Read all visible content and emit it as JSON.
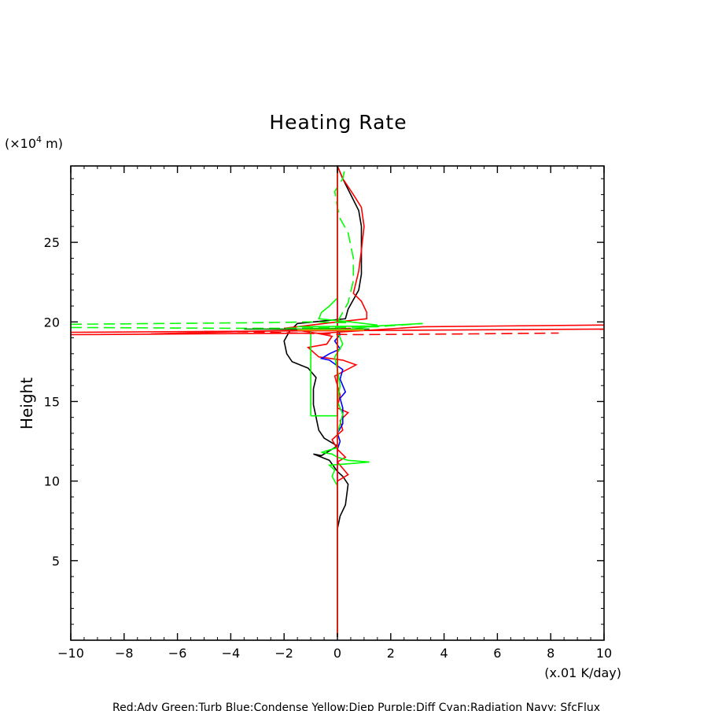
{
  "chart_data": {
    "type": "line",
    "title": "Heating Rate",
    "ylabel": "Height",
    "y_unit_base": "(×10",
    "y_unit_exp": "4",
    "y_unit_suffix": " m)",
    "x_unit": "(x.01 K/day)",
    "legend_text": "Red:Adv  Green:Turb  Blue:Condense  Yellow:Diep  Purple:Diff  Cyan:Radiation  Navy: SfcFlux",
    "xlim": [
      -10,
      10
    ],
    "ylim": [
      0,
      29.8
    ],
    "x_ticks": [
      "−10",
      "−8",
      "−6",
      "−4",
      "−2",
      "0",
      "2",
      "4",
      "6",
      "8",
      "10"
    ],
    "y_ticks": [
      "5",
      "10",
      "15",
      "20",
      "25"
    ],
    "grid": false,
    "series": [
      {
        "color": "#000000",
        "dash": false,
        "points": [
          [
            0,
            0.2
          ],
          [
            0,
            7
          ],
          [
            0.1,
            7.8
          ],
          [
            0.3,
            8.5
          ],
          [
            0.4,
            9.8
          ],
          [
            0.2,
            10.3
          ],
          [
            0,
            10.6
          ],
          [
            -0.3,
            11.3
          ],
          [
            -0.9,
            11.7
          ],
          [
            -0.6,
            11.6
          ],
          [
            0,
            12.2
          ],
          [
            -0.5,
            12.7
          ],
          [
            -0.7,
            13.2
          ],
          [
            -0.8,
            14
          ],
          [
            -0.9,
            14.8
          ],
          [
            -0.9,
            15.8
          ],
          [
            -0.8,
            16.5
          ],
          [
            -1.1,
            17.1
          ],
          [
            -1.7,
            17.5
          ],
          [
            -1.9,
            18
          ],
          [
            -2.0,
            18.8
          ],
          [
            -1.8,
            19.4
          ],
          [
            -1.5,
            19.9
          ],
          [
            0.3,
            20.2
          ],
          [
            0.4,
            20.8
          ],
          [
            0.8,
            22
          ],
          [
            0.9,
            23
          ],
          [
            0.9,
            24.6
          ],
          [
            0.9,
            26
          ],
          [
            0.8,
            27
          ],
          [
            0.5,
            28
          ],
          [
            0.2,
            29
          ],
          [
            0,
            29.8
          ]
        ]
      },
      {
        "color": "#ff0000",
        "dash": false,
        "points": [
          [
            0,
            5.2
          ],
          [
            0,
            10
          ],
          [
            0.4,
            10.4
          ],
          [
            0.2,
            10.8
          ],
          [
            0,
            11.2
          ],
          [
            0.3,
            11.5
          ],
          [
            0,
            12
          ],
          [
            -0.2,
            12.6
          ],
          [
            0.2,
            13.2
          ],
          [
            0.1,
            13.8
          ],
          [
            0.4,
            14.3
          ],
          [
            0,
            14.6
          ],
          [
            0.1,
            15.4
          ],
          [
            0,
            16
          ],
          [
            -0.1,
            16.6
          ],
          [
            0.7,
            17.3
          ],
          [
            0.2,
            17.6
          ],
          [
            -0.7,
            17.8
          ],
          [
            -1.1,
            18.4
          ],
          [
            -0.4,
            18.6
          ],
          [
            -0.2,
            19.1
          ],
          [
            -0.8,
            19.3
          ],
          [
            -2.0,
            19.6
          ],
          [
            0,
            20
          ],
          [
            1.1,
            20.2
          ],
          [
            1.1,
            20.6
          ],
          [
            0.9,
            21.3
          ],
          [
            0.6,
            21.8
          ],
          [
            0.8,
            23.2
          ],
          [
            0.9,
            24.5
          ],
          [
            1.0,
            26
          ],
          [
            0.9,
            27.2
          ],
          [
            0.6,
            28
          ],
          [
            0.2,
            29
          ],
          [
            0,
            29.8
          ]
        ]
      },
      {
        "color": "#0000ff",
        "dash": false,
        "points": [
          [
            0,
            0.2
          ],
          [
            0,
            12
          ],
          [
            0.1,
            12.5
          ],
          [
            0,
            13
          ],
          [
            0.2,
            13.6
          ],
          [
            0.2,
            14.6
          ],
          [
            0.1,
            15.2
          ],
          [
            0.3,
            15.6
          ],
          [
            0.1,
            16.4
          ],
          [
            0.2,
            17
          ],
          [
            -0.3,
            17.6
          ],
          [
            -0.6,
            17.7
          ],
          [
            -0.3,
            18
          ],
          [
            0.1,
            18.3
          ],
          [
            -0.1,
            18.8
          ],
          [
            0.1,
            19.2
          ],
          [
            0,
            19.6
          ],
          [
            0,
            29.8
          ]
        ]
      },
      {
        "color": "#00ff00",
        "dash": false,
        "points": [
          [
            0,
            0.2
          ],
          [
            0,
            9.7
          ],
          [
            -0.2,
            10.3
          ],
          [
            -0.1,
            10.7
          ],
          [
            -0.3,
            11
          ],
          [
            0.5,
            11.1
          ],
          [
            1.2,
            11.2
          ],
          [
            0.4,
            11.3
          ],
          [
            0,
            11.5
          ],
          [
            -0.2,
            11.7
          ],
          [
            -0.6,
            11.8
          ],
          [
            0,
            12.1
          ],
          [
            0,
            13
          ],
          [
            0.2,
            14.2
          ],
          [
            0,
            15
          ],
          [
            0.1,
            16
          ],
          [
            0,
            17
          ],
          [
            -0.1,
            17.8
          ],
          [
            0.2,
            18.6
          ],
          [
            0,
            19.4
          ],
          [
            0.8,
            19.6
          ],
          [
            1.5,
            19.8
          ],
          [
            0.5,
            20
          ],
          [
            -0.7,
            20.2
          ],
          [
            -0.6,
            20.6
          ],
          [
            -0.3,
            21
          ],
          [
            0,
            21.5
          ],
          [
            0,
            29.8
          ]
        ]
      },
      {
        "color": "#00ff00",
        "dash": false,
        "points": [
          [
            -1.0,
            14.1
          ],
          [
            -1.0,
            19.6
          ],
          [
            0,
            19.6
          ],
          [
            0,
            14.1
          ],
          [
            -1.0,
            14.1
          ]
        ]
      },
      {
        "color": "#00ff00",
        "dash": true,
        "points": [
          [
            0,
            20
          ],
          [
            0.4,
            21.2
          ],
          [
            0.6,
            22.6
          ],
          [
            0.6,
            24
          ],
          [
            0.4,
            25.6
          ],
          [
            0.1,
            26.5
          ],
          [
            0,
            27.2
          ],
          [
            -0.1,
            28.2
          ],
          [
            0.2,
            29
          ],
          [
            0.3,
            29.8
          ]
        ]
      },
      {
        "color": "#ff0000",
        "dash": false,
        "points": [
          [
            0,
            0.2
          ],
          [
            0,
            29.8
          ]
        ]
      },
      {
        "color": "#ff0000",
        "dash": false,
        "points": [
          [
            -10,
            19.35
          ],
          [
            10,
            19.55
          ]
        ]
      },
      {
        "color": "#ff0000",
        "dash": false,
        "points": [
          [
            -10,
            19.2
          ],
          [
            -0.5,
            19.3
          ],
          [
            3.2,
            19.7
          ],
          [
            10,
            19.8
          ]
        ]
      },
      {
        "color": "#ff0000",
        "dash": false,
        "points": [
          [
            -7,
            19.25
          ],
          [
            -1,
            19.5
          ],
          [
            0.5,
            19.6
          ]
        ]
      },
      {
        "color": "#ff0000",
        "dash": true,
        "points": [
          [
            -5,
            19.4
          ],
          [
            -2.5,
            19.35
          ],
          [
            0.5,
            19.2
          ],
          [
            5,
            19.25
          ],
          [
            8.3,
            19.3
          ]
        ]
      },
      {
        "color": "#00ff00",
        "dash": true,
        "points": [
          [
            -10,
            19.85
          ],
          [
            -3,
            19.95
          ],
          [
            -1,
            20.0
          ],
          [
            0.5,
            19.95
          ]
        ]
      },
      {
        "color": "#00ff00",
        "dash": true,
        "points": [
          [
            -10,
            19.65
          ],
          [
            -4,
            19.6
          ],
          [
            -2,
            19.6
          ],
          [
            0,
            19.65
          ],
          [
            1.5,
            19.7
          ],
          [
            3.2,
            19.9
          ]
        ]
      },
      {
        "color": "#008800",
        "dash": false,
        "points": [
          [
            -3.5,
            19.55
          ],
          [
            1.2,
            19.55
          ]
        ]
      },
      {
        "color": "#00ff00",
        "dash": false,
        "points": [
          [
            -1.5,
            19.7
          ],
          [
            1.5,
            19.75
          ],
          [
            3.2,
            19.9
          ]
        ]
      },
      {
        "color": "#cccc00",
        "dash": false,
        "points": [
          [
            -1.5,
            19.5
          ],
          [
            1.0,
            19.5
          ]
        ]
      }
    ]
  }
}
